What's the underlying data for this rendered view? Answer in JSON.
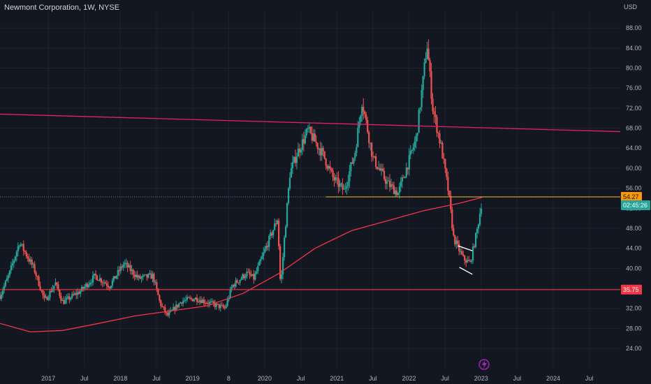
{
  "header": {
    "title": "Newmont Corporation, 1W, NYSE"
  },
  "chart_data": {
    "type": "candlestick",
    "title": "Newmont Corporation, 1W, NYSE",
    "currency": "USD",
    "y_ticks": [
      24,
      28,
      32,
      36,
      40,
      44,
      48,
      52,
      56,
      60,
      64,
      68,
      72,
      76,
      80,
      84,
      88
    ],
    "ylim": [
      21.5,
      91.5
    ],
    "x_ticks": [
      {
        "label": "2017",
        "year": 2017.0
      },
      {
        "label": "Jul",
        "year": 2017.5
      },
      {
        "label": "2018",
        "year": 2018.0
      },
      {
        "label": "Jul",
        "year": 2018.5
      },
      {
        "label": "2019",
        "year": 2019.0
      },
      {
        "label": "8",
        "year": 2019.5
      },
      {
        "label": "2020",
        "year": 2020.0
      },
      {
        "label": "Jul",
        "year": 2020.5
      },
      {
        "label": "2021",
        "year": 2021.0
      },
      {
        "label": "Jul",
        "year": 2021.5
      },
      {
        "label": "2022",
        "year": 2022.0
      },
      {
        "label": "Jul",
        "year": 2022.5
      },
      {
        "label": "2023",
        "year": 2023.0
      },
      {
        "label": "Jul",
        "year": 2023.5
      },
      {
        "label": "2024",
        "year": 2024.0
      },
      {
        "label": "Jul",
        "year": 2024.5
      }
    ],
    "xlim": [
      2016.33,
      2024.93
    ],
    "price_path": [
      {
        "year": 2016.33,
        "price": 34.5
      },
      {
        "year": 2016.45,
        "price": 38.5
      },
      {
        "year": 2016.6,
        "price": 45.2
      },
      {
        "year": 2016.8,
        "price": 40.0
      },
      {
        "year": 2016.95,
        "price": 33.5
      },
      {
        "year": 2017.1,
        "price": 37.0
      },
      {
        "year": 2017.2,
        "price": 33.2
      },
      {
        "year": 2017.45,
        "price": 35.5
      },
      {
        "year": 2017.65,
        "price": 38.5
      },
      {
        "year": 2017.85,
        "price": 36.5
      },
      {
        "year": 2018.05,
        "price": 41.0
      },
      {
        "year": 2018.25,
        "price": 38.0
      },
      {
        "year": 2018.45,
        "price": 38.5
      },
      {
        "year": 2018.55,
        "price": 33.0
      },
      {
        "year": 2018.65,
        "price": 30.5
      },
      {
        "year": 2018.85,
        "price": 33.5
      },
      {
        "year": 2019.05,
        "price": 34.0
      },
      {
        "year": 2019.25,
        "price": 33.0
      },
      {
        "year": 2019.45,
        "price": 32.0
      },
      {
        "year": 2019.55,
        "price": 36.5
      },
      {
        "year": 2019.75,
        "price": 39.0
      },
      {
        "year": 2019.85,
        "price": 38.0
      },
      {
        "year": 2020.0,
        "price": 43.5
      },
      {
        "year": 2020.18,
        "price": 50.0
      },
      {
        "year": 2020.22,
        "price": 36.0
      },
      {
        "year": 2020.27,
        "price": 45.5
      },
      {
        "year": 2020.35,
        "price": 59.0
      },
      {
        "year": 2020.45,
        "price": 63.0
      },
      {
        "year": 2020.6,
        "price": 67.5
      },
      {
        "year": 2020.8,
        "price": 63.0
      },
      {
        "year": 2020.95,
        "price": 58.0
      },
      {
        "year": 2021.1,
        "price": 55.5
      },
      {
        "year": 2021.25,
        "price": 63.0
      },
      {
        "year": 2021.35,
        "price": 73.5
      },
      {
        "year": 2021.5,
        "price": 62.0
      },
      {
        "year": 2021.7,
        "price": 57.0
      },
      {
        "year": 2021.85,
        "price": 55.0
      },
      {
        "year": 2022.0,
        "price": 61.5
      },
      {
        "year": 2022.1,
        "price": 66.0
      },
      {
        "year": 2022.2,
        "price": 78.0
      },
      {
        "year": 2022.25,
        "price": 85.0
      },
      {
        "year": 2022.33,
        "price": 72.0
      },
      {
        "year": 2022.45,
        "price": 64.0
      },
      {
        "year": 2022.55,
        "price": 55.0
      },
      {
        "year": 2022.62,
        "price": 46.0
      },
      {
        "year": 2022.75,
        "price": 42.0
      },
      {
        "year": 2022.85,
        "price": 41.0
      },
      {
        "year": 2022.95,
        "price": 48.0
      },
      {
        "year": 2023.02,
        "price": 54.27
      }
    ],
    "moving_average": {
      "color": "#f23645",
      "points": [
        {
          "year": 2016.33,
          "price": 29.0
        },
        {
          "year": 2016.75,
          "price": 27.3
        },
        {
          "year": 2017.2,
          "price": 27.6
        },
        {
          "year": 2017.7,
          "price": 29.0
        },
        {
          "year": 2018.2,
          "price": 30.5
        },
        {
          "year": 2018.7,
          "price": 31.5
        },
        {
          "year": 2019.2,
          "price": 32.5
        },
        {
          "year": 2019.7,
          "price": 35.0
        },
        {
          "year": 2020.2,
          "price": 39.0
        },
        {
          "year": 2020.7,
          "price": 44.0
        },
        {
          "year": 2021.2,
          "price": 47.5
        },
        {
          "year": 2021.7,
          "price": 49.5
        },
        {
          "year": 2022.2,
          "price": 51.5
        },
        {
          "year": 2022.7,
          "price": 53.0
        },
        {
          "year": 2023.02,
          "price": 54.2
        }
      ]
    },
    "trendlines": [
      {
        "name": "resistance",
        "color": "#e91e63",
        "from": {
          "year": 2016.33,
          "price": 70.8
        },
        "to": {
          "year": 2024.93,
          "price": 67.3
        }
      },
      {
        "name": "channel-upper",
        "color": "#ffffff",
        "from": {
          "year": 2022.68,
          "price": 44.5
        },
        "to": {
          "year": 2022.88,
          "price": 43.5
        }
      },
      {
        "name": "channel-lower",
        "color": "#ffffff",
        "from": {
          "year": 2022.7,
          "price": 40.2
        },
        "to": {
          "year": 2022.88,
          "price": 38.8
        }
      }
    ],
    "horizontal_levels": [
      {
        "name": "support",
        "price": 35.75,
        "color": "#f23645",
        "label": "35.75"
      },
      {
        "name": "breakout",
        "price": 54.27,
        "color": "#ff9800",
        "from_year": 2020.85,
        "label": "54.27"
      }
    ],
    "price_tags": [
      {
        "name": "breakout-tag",
        "price": 54.27,
        "label": "54.27",
        "color": "#ff9800",
        "text_color": "#131722"
      },
      {
        "name": "countdown-tag",
        "price": 52.6,
        "label": "02:45:26",
        "color": "#26a69a",
        "text_color": "#ffffff"
      },
      {
        "name": "support-tag",
        "price": 35.75,
        "label": "35.75",
        "color": "#f23645",
        "text_color": "#ffffff"
      }
    ],
    "colors": {
      "up": "#26a69a",
      "down": "#ef5350",
      "background": "#131722",
      "grid": "#1e222d",
      "current_price_line": "#26a69a"
    }
  }
}
